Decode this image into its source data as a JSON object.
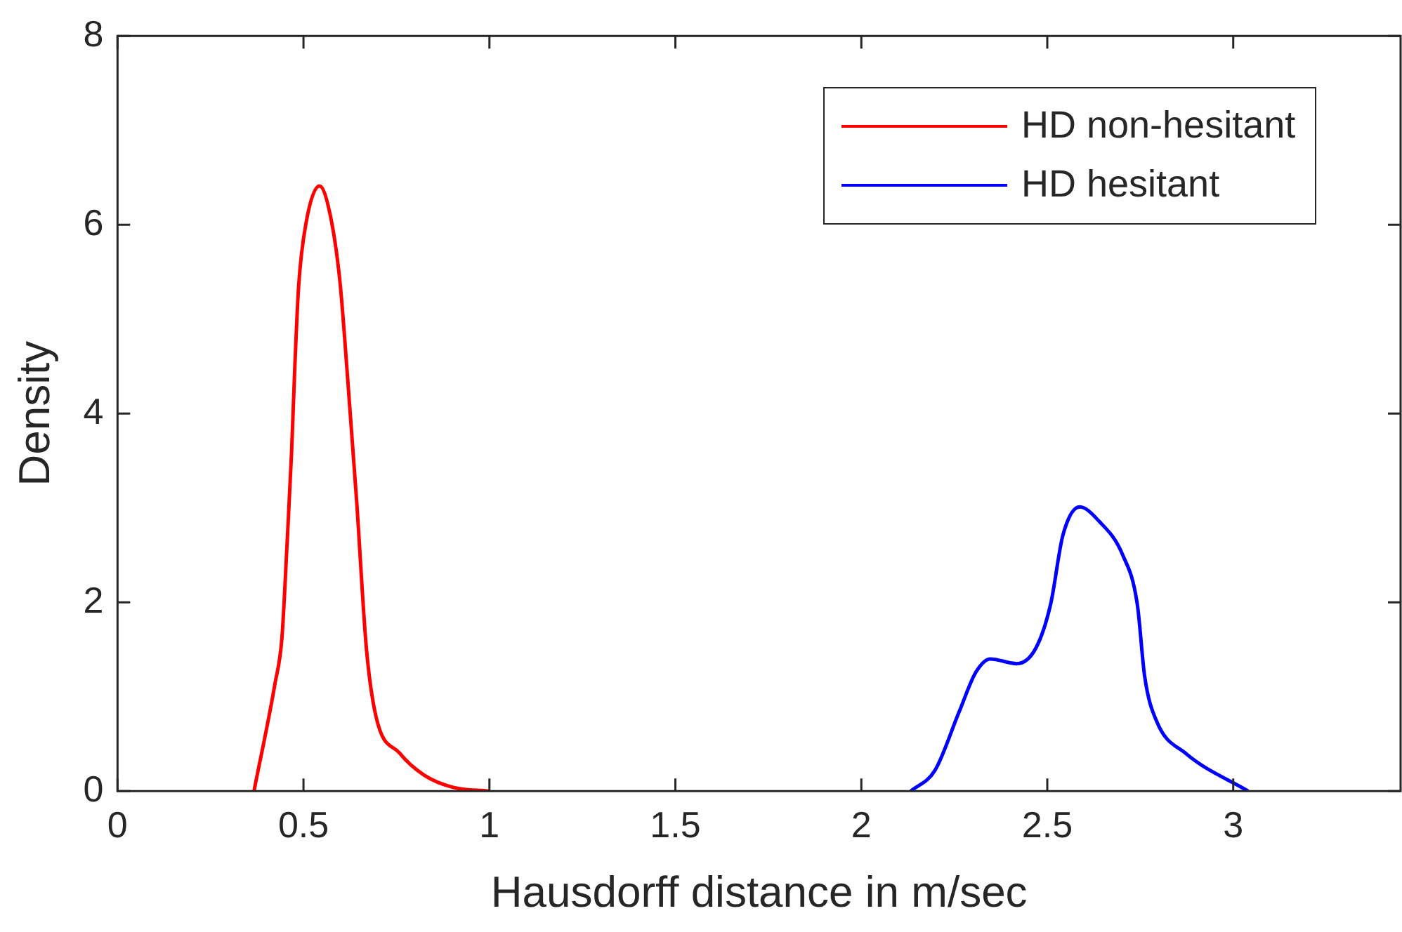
{
  "chart_data": {
    "type": "line",
    "xlabel": "Hausdorff distance in m/sec",
    "ylabel": "Density",
    "xlim": [
      0,
      3.45
    ],
    "xticks": [
      0,
      0.5,
      1,
      1.5,
      2,
      2.5,
      3
    ],
    "ylim": [
      0,
      8
    ],
    "yticks": [
      0,
      2,
      4,
      6,
      8
    ],
    "legend": "top right",
    "marker": "none",
    "line_style": "solid",
    "series": [
      {
        "name": "HD non-hesitant",
        "color": "#ff0000",
        "x": [
          0.367,
          0.423,
          0.442,
          0.455,
          0.468,
          0.477,
          0.487,
          0.507,
          0.543,
          0.571,
          0.598,
          0.619,
          0.643,
          0.669,
          0.695,
          0.759,
          0.824,
          0.902,
          0.999
        ],
        "values": [
          0,
          1.13,
          1.62,
          2.55,
          3.59,
          4.52,
          5.35,
          6.02,
          6.41,
          6.12,
          5.4,
          4.36,
          3.07,
          1.52,
          0.79,
          0.4,
          0.17,
          0.04,
          0
        ]
      },
      {
        "name": "HD hesitant",
        "color": "#0000ff",
        "x": [
          2.133,
          2.198,
          2.263,
          2.308,
          2.347,
          2.418,
          2.47,
          2.509,
          2.542,
          2.587,
          2.639,
          2.703,
          2.742,
          2.762,
          2.794,
          2.872,
          3.04
        ],
        "values": [
          0,
          0.22,
          0.84,
          1.26,
          1.4,
          1.35,
          1.52,
          1.98,
          2.71,
          3.01,
          2.86,
          2.5,
          1.98,
          1.21,
          0.74,
          0.4,
          0
        ]
      }
    ]
  }
}
